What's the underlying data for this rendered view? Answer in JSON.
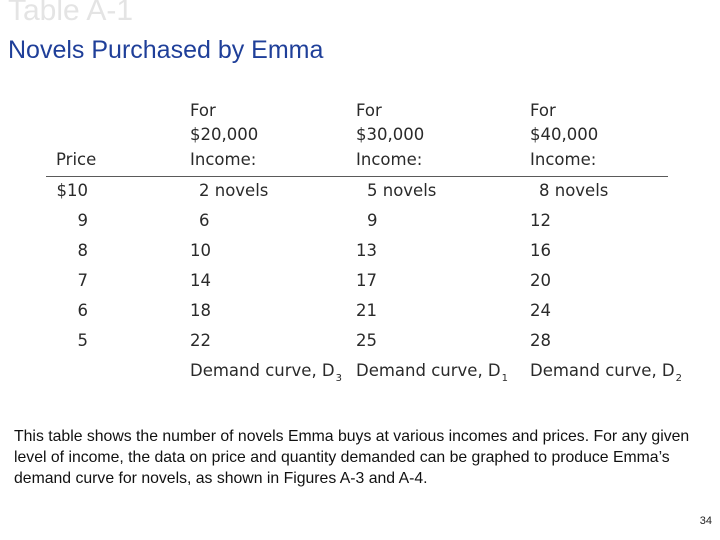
{
  "slide": {
    "faded_title": "Table A-1",
    "subtitle": "Novels Purchased by Emma",
    "caption": "This table shows the number of novels Emma buys at various incomes and prices. For any given level of income, the data on price and quantity demanded can be graphed to produce Emma’s demand curve for novels, as shown in Figures A-3 and A-4.",
    "page_number": "34"
  },
  "table": {
    "price_header": "Price",
    "income_headers": [
      {
        "line1": "For",
        "line2": "$20,000",
        "line3": "Income:"
      },
      {
        "line1": "For",
        "line2": "$30,000",
        "line3": "Income:"
      },
      {
        "line1": "For",
        "line2": "$40,000",
        "line3": "Income:"
      }
    ],
    "rows": [
      {
        "price": "$10",
        "q1": "2 novels",
        "q2": "5 novels",
        "q3": "8 novels"
      },
      {
        "price": "9",
        "q1": "6",
        "q2": "9",
        "q3": "12"
      },
      {
        "price": "8",
        "q1": "10",
        "q2": "13",
        "q3": "16"
      },
      {
        "price": "7",
        "q1": "14",
        "q2": "17",
        "q3": "20"
      },
      {
        "price": "6",
        "q1": "18",
        "q2": "21",
        "q3": "24"
      },
      {
        "price": "5",
        "q1": "22",
        "q2": "25",
        "q3": "28"
      }
    ],
    "curves": [
      {
        "label": "Demand curve, D",
        "sub": "3"
      },
      {
        "label": "Demand curve, D",
        "sub": "1"
      },
      {
        "label": "Demand curve, D",
        "sub": "2"
      }
    ]
  }
}
